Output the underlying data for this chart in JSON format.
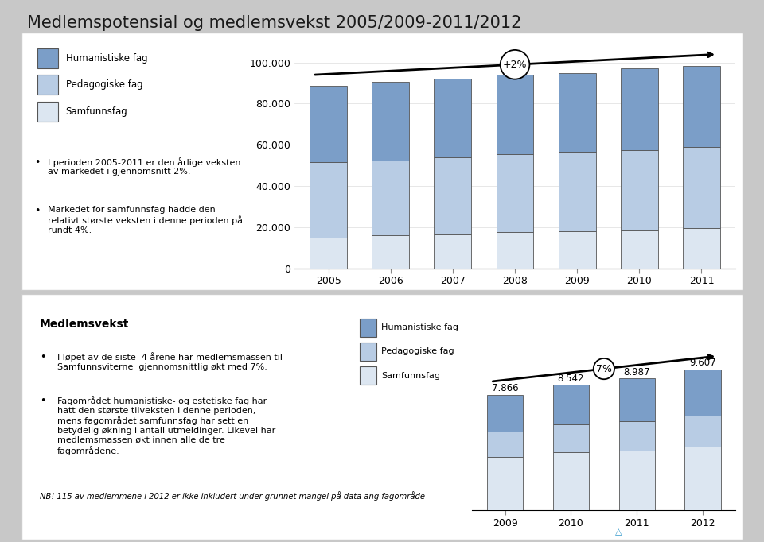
{
  "title": "Medlemspotensial og medlemsvekst 2005/2009-2011/2012",
  "title_fontsize": 15,
  "chart1": {
    "years": [
      2005,
      2006,
      2007,
      2008,
      2009,
      2010,
      2011
    ],
    "humanistiske": [
      37000,
      38000,
      38000,
      38500,
      38500,
      39500,
      39500
    ],
    "pedagogiske": [
      36500,
      36500,
      37500,
      38000,
      38500,
      39000,
      39500
    ],
    "samfunnsfag": [
      15000,
      16000,
      16500,
      17500,
      18000,
      18500,
      19500
    ],
    "color_humanistiske": "#7b9ec8",
    "color_pedagogiske": "#b8cce4",
    "color_samfunnsfag": "#dce6f1",
    "ylabel_vals": [
      0,
      20000,
      40000,
      60000,
      80000,
      100000
    ],
    "ylabel_labels": [
      "0",
      "20.000",
      "40.000",
      "60.000",
      "80.000",
      "100.000"
    ],
    "arrow_label": "+2%",
    "legend1": "Humanistiske fag",
    "legend2": "Pedagogiske fag",
    "legend3": "Samfunnsfag",
    "text1": "I perioden 2005-2011 er den årlige veksten\nav markedet i gjennomsnitt 2%.",
    "text2": "Markedet for samfunnsfag hadde den\nrelativt største veksten i denne perioden på\nrundt 4%."
  },
  "chart2": {
    "years": [
      2009,
      2010,
      2011,
      2012
    ],
    "totals": [
      7866,
      8542,
      8987,
      9607
    ],
    "humanistiske": [
      2500,
      2700,
      2900,
      3150
    ],
    "pedagogiske": [
      1700,
      1900,
      2000,
      2100
    ],
    "samfunnsfag": [
      3666,
      3942,
      4087,
      4357
    ],
    "color_humanistiske": "#7b9ec8",
    "color_pedagogiske": "#b8cce4",
    "color_samfunnsfag": "#dce6f1",
    "arrow_label": "7%",
    "title": "Medlemsvekst",
    "bullet1": "I løpet av de siste  4 årene har medlemsmassen til\nSamfunnsviterne  gjennomsnittlig økt med 7%.",
    "bullet2": "Fagområdet humanistiske- og estetiske fag har\nhatt den største tilveksten i denne perioden,\nmens fagområdet samfunnsfag har sett en\nbetydelig økning i antall utmeldinger. Likevel har\nmedlemsmassen økt innen alle de tre\nfagområdene.",
    "footnote": "NB! 115 av medlemmene i 2012 er ikke inkludert under grunnet mangel på data ang fagområde",
    "legend1": "Humanistiske fag",
    "legend2": "Pedagogiske fag",
    "legend3": "Samfunnsfag"
  },
  "panel_bg": "#ffffff",
  "panel_edge": "#cccccc",
  "outer_bg": "#c8c8c8",
  "footer_bg": "#1c1c1c"
}
